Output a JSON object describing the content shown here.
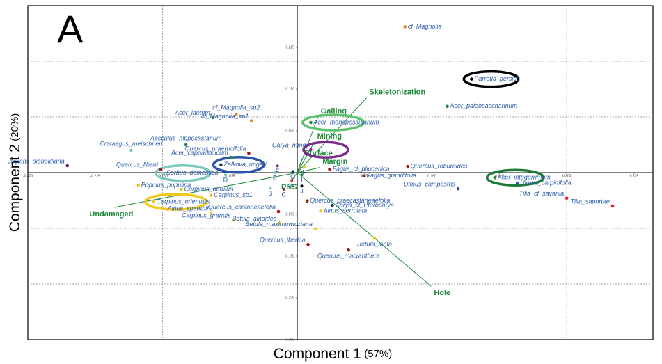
{
  "chart_data": {
    "type": "scatter",
    "panel_label": "A",
    "x_label": "Component 1",
    "x_label_pct": "(57%)",
    "y_label": "Component 2",
    "y_label_pct": "(20%)",
    "xlim": [
      -0.3,
      0.396
    ],
    "ylim": [
      -0.3,
      0.3
    ],
    "xticks": [
      {
        "value": -0.3,
        "label": "-0.300"
      },
      {
        "value": -0.225,
        "label": "-0.225"
      },
      {
        "value": -0.15,
        "label": "-0.150"
      },
      {
        "value": -0.075,
        "label": "-0.075"
      },
      {
        "value": 0.075,
        "label": "0.075"
      },
      {
        "value": 0.15,
        "label": "0.150"
      },
      {
        "value": 0.225,
        "label": "0.225"
      },
      {
        "value": 0.3,
        "label": "0.300"
      },
      {
        "value": 0.375,
        "label": "0.375"
      }
    ],
    "yticks": [
      {
        "value": 0.225,
        "label": "0.225"
      },
      {
        "value": 0.15,
        "label": "0.150"
      },
      {
        "value": 0.075,
        "label": "0.075"
      },
      {
        "value": -0.075,
        "label": "-0.075"
      },
      {
        "value": -0.15,
        "label": "-0.150"
      },
      {
        "value": -0.225,
        "label": "-0.225"
      },
      {
        "value": -0.3,
        "label": "-0.300"
      }
    ],
    "xgrid": [
      -0.15,
      0.15,
      0.3
    ],
    "ygrid": [
      0.2,
      0.1,
      -0.1,
      -0.2
    ],
    "label_color": "#2a5caa",
    "points": [
      {
        "name": "cf_Magnolia",
        "color": "#e88a1a",
        "x": 0.12,
        "y": 0.262
      },
      {
        "name": "Parrotia_persica",
        "color": "#000000",
        "x": 0.194,
        "y": 0.168,
        "ring": "#000000"
      },
      {
        "name": "Acer_paleosaccharinum",
        "color": "#1e8a3a",
        "x": 0.167,
        "y": 0.119
      },
      {
        "name": "Acer_laetum",
        "color": "#1e8a3a",
        "x": -0.094,
        "y": 0.099
      },
      {
        "name": "cf_Magnolia_sp2",
        "color": "#e88a1a",
        "x": -0.068,
        "y": 0.105
      },
      {
        "name": "cf_Magnolia_sp1",
        "color": "#e88a1a",
        "x": -0.051,
        "y": 0.093
      },
      {
        "name": "Acer_monspessulanum",
        "color": "#1e8a3a",
        "x": 0.015,
        "y": 0.09,
        "ring": "#5cc26a"
      },
      {
        "name": "Crataegus_meischneri",
        "color": "#7ac8c0",
        "x": -0.185,
        "y": 0.04
      },
      {
        "name": "Aesculus_hippocastanum",
        "color": "#1e8a3a",
        "x": -0.124,
        "y": 0.05
      },
      {
        "name": "Juglans_sieboldiana",
        "color": "#7a2060",
        "x": -0.256,
        "y": 0.0125
      },
      {
        "name": "Quercus_praerucifolia",
        "color": "#a01818",
        "x": -0.054,
        "y": 0.035
      },
      {
        "name": "Carya_minor",
        "color": "#7a2a8a",
        "x": 0.015,
        "y": 0.041,
        "ring": "#7a2a8a"
      },
      {
        "name": "Acer_cappadocicum",
        "color": "#1e8a3a",
        "x": -0.074,
        "y": 0.0275
      },
      {
        "name": "Zelkova_ungeri",
        "color": "#1e2f6a",
        "x": -0.085,
        "y": 0.014,
        "ring": "#2a55a8"
      },
      {
        "name": "Quercus_libani",
        "color": "#a01818",
        "x": -0.152,
        "y": 0.006
      },
      {
        "name": "Sorbus_domestica",
        "color": "#7ac8c0",
        "x": -0.149,
        "y": -0.001,
        "ring": "#7ac8c0"
      },
      {
        "name": "Populus_populina",
        "color": "#f2c81a",
        "x": -0.177,
        "y": -0.0225
      },
      {
        "name": "Carpinus_betulus",
        "color": "#f2c81a",
        "x": -0.129,
        "y": -0.03
      },
      {
        "name": "Carpinus_sp1",
        "color": "#f2c81a",
        "x": -0.096,
        "y": -0.041
      },
      {
        "name": "Carpinus_orientalis",
        "color": "#f2c81a",
        "x": -0.16,
        "y": -0.0525,
        "ring": "#f2c81a"
      },
      {
        "name": "Alnus_spaethii",
        "color": "#f2c81a",
        "x": -0.096,
        "y": -0.0725
      },
      {
        "name": "Carpinus_grandis",
        "color": "#f2c81a",
        "x": -0.071,
        "y": -0.085
      },
      {
        "name": "Quercus_castaneaefolia",
        "color": "#a01818",
        "x": -0.021,
        "y": -0.07
      },
      {
        "name": "Betula_alnoides",
        "color": "#f2c81a",
        "x": -0.02,
        "y": -0.091
      },
      {
        "name": "Quercus_iberica",
        "color": "#a01818",
        "x": 0.012,
        "y": -0.129
      },
      {
        "name": "Quercus_macranthera",
        "color": "#a01818",
        "x": 0.057,
        "y": -0.139
      },
      {
        "name": "Betula_maximowicziana",
        "color": "#f2c81a",
        "x": 0.02,
        "y": -0.101
      },
      {
        "name": "Betula_lenta",
        "color": "#f2c81a",
        "x": 0.086,
        "y": -0.1175
      },
      {
        "name": "Alnus_serrulata",
        "color": "#f2c81a",
        "x": 0.026,
        "y": -0.069
      },
      {
        "name": "Carya_cf_Pterocarya",
        "color": "#1e2f6a",
        "x": 0.039,
        "y": -0.059
      },
      {
        "name": "Quercus_praecastaneaefolia",
        "color": "#a01818",
        "x": 0.011,
        "y": -0.051
      },
      {
        "name": "Fagus_cf_pliocenica",
        "color": "#a01818",
        "x": 0.036,
        "y": 0.006
      },
      {
        "name": "Fagus_grandifolia",
        "color": "#a01818",
        "x": 0.074,
        "y": -0.006
      },
      {
        "name": "Quercus_roburoides",
        "color": "#a01818",
        "x": 0.123,
        "y": 0.011
      },
      {
        "name": "Acer_integerrimum",
        "color": "#1e8a3a",
        "x": 0.22,
        "y": -0.009,
        "ring": "#1e7a38"
      },
      {
        "name": "Ulmus_campestris",
        "color": "#2a55a8",
        "x": 0.179,
        "y": -0.029
      },
      {
        "name": "Ulmus_carpinifolia",
        "color": "#2a55a8",
        "x": 0.245,
        "y": -0.019
      },
      {
        "name": "Tilia_cf_savania",
        "color": "#e02020",
        "x": 0.3,
        "y": -0.046
      },
      {
        "name": "Tilia_saportae",
        "color": "#e02020",
        "x": 0.351,
        "y": -0.06
      }
    ],
    "letters": [
      {
        "name": "A",
        "color": "#e02020",
        "x": -0.006,
        "y": -0.014
      },
      {
        "name": "B",
        "color": "#7ac8c0",
        "x": -0.03,
        "y": -0.028
      },
      {
        "name": "C",
        "color": "#a01818",
        "x": -0.015,
        "y": -0.03
      },
      {
        "name": "D",
        "color": "#7ac8c0",
        "x": -0.08,
        "y": -0.004
      },
      {
        "name": "E",
        "color": "#7ac8c0",
        "x": -0.025,
        "y": 0.0
      },
      {
        "name": "F",
        "color": "#7a2a8a",
        "x": -0.022,
        "y": 0.012
      },
      {
        "name": "G",
        "color": "#1e2f6a",
        "x": -0.005,
        "y": 0.002
      },
      {
        "name": "H",
        "color": "#f2c81a",
        "x": 0.008,
        "y": 0.01
      },
      {
        "name": "I",
        "color": "#1e8a3a",
        "x": 0.005,
        "y": -0.004
      },
      {
        "name": "J",
        "color": "#000000",
        "x": 0.005,
        "y": -0.024
      }
    ],
    "vector_color": "#1e8a3a",
    "vectors": [
      {
        "name": "Skeletonization",
        "x": 0.077,
        "y": 0.134
      },
      {
        "name": "Galling",
        "x": 0.023,
        "y": 0.1
      },
      {
        "name": "Mining",
        "x": 0.019,
        "y": 0.055
      },
      {
        "name": "Surface",
        "x": 0.005,
        "y": 0.024
      },
      {
        "name": "Margin",
        "x": 0.025,
        "y": 0.009
      },
      {
        "name": "P&S",
        "x": -0.006,
        "y": -0.014
      },
      {
        "name": "Hole",
        "x": 0.149,
        "y": -0.204
      },
      {
        "name": "Undamaged",
        "x": -0.204,
        "y": -0.0625
      }
    ]
  }
}
